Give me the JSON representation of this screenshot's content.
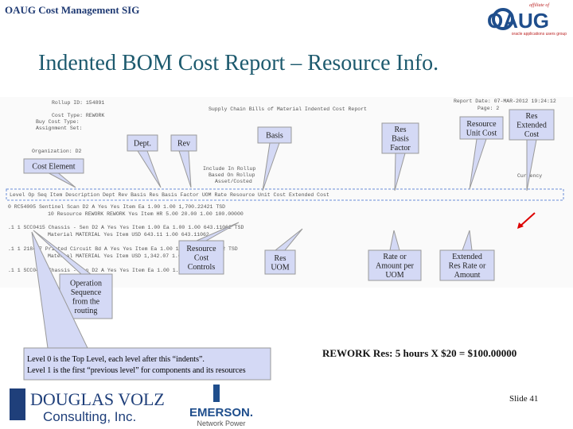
{
  "header": {
    "title": "OAUG Cost Management SIG",
    "logo_tag": "affiliate of",
    "logo": "OAUG",
    "logo_sub": "oracle applications users group"
  },
  "slide_title": "Indented BOM Cost Report – Resource Info.",
  "report": {
    "lines": [
      "Rollup ID: 154891",
      "Report Date: 07-MAR-2012 19:24:12",
      "Page: 2",
      "Supply Chain Bills of Material Indented Cost Report",
      "Cost Type: REWORK",
      "Buy Cost Type:",
      "Assignment Set:",
      "Organization: D2",
      "Include In Rollup",
      "Based On Rollup",
      "Asset/Costed",
      "Currency",
      "Level  Op Seq  Item  Description  Dept  Rev  Basis  Res Basis Factor  UOM  Rate  Resource Unit Cost  Extended Cost",
      "0      RC54005  Sentinel Scan D2  A  Yes Yes  Item  Ea  1.00  1.00  1,700.22421  TSD",
      "10  Resource  REWORK  REWORK  Yes  Item  HR  5.00  20.00  1.00  100.00000",
      ".1  1  SCC0415  Chassis - Sen D2  A  Yes Yes  Item  1.00  Ea  1.00  1.00  643.11062  TSD",
      "    Material  MATERIAL  Yes  Item  USD  643.11  1.00  643.11062",
      ".1  1  218467  Printed Circuit Bd  A  Yes Yes  Item  Ea  1.00  1.00  1,342.07242  TSD",
      "    Material  MATERIAL  Yes  Item  USD  1,342.07  1.00  1,342.07242",
      ".1  1  SCC0415  Chassis - Sen D2  A  Yes Yes  Item  Ea  1.00  1.00"
    ]
  },
  "callouts": [
    {
      "lines": [
        "Dept."
      ]
    },
    {
      "lines": [
        "Rev"
      ]
    },
    {
      "lines": [
        "Basis"
      ]
    },
    {
      "lines": [
        "Res",
        "Basis",
        "Factor"
      ]
    },
    {
      "lines": [
        "Resource",
        "Unit Cost"
      ]
    },
    {
      "lines": [
        "Res",
        "Extended",
        "Cost"
      ]
    },
    {
      "lines": [
        "Cost Element"
      ]
    },
    {
      "lines": [
        "Resource",
        "Cost",
        "Controls"
      ]
    },
    {
      "lines": [
        "Res",
        "UOM"
      ]
    },
    {
      "lines": [
        "Rate or",
        "Amount per",
        "UOM"
      ]
    },
    {
      "lines": [
        "Extended",
        "Res Rate or",
        "Amount"
      ]
    },
    {
      "lines": [
        "Operation",
        "Sequence",
        "from the",
        "routing"
      ]
    }
  ],
  "note": [
    "Level 0 is the Top Level, each level after this “indents”.",
    "Level 1 is the first “previous level” for components and its resources"
  ],
  "rework": "REWORK Res:  5 hours X $20 = $100.00000",
  "slide_number": "Slide 41",
  "footer": {
    "dv_name": "DOUGLAS VOLZ",
    "dv_sub": "Consulting, Inc.",
    "emerson": "EMERSON.",
    "emerson_sub": "Network Power"
  }
}
